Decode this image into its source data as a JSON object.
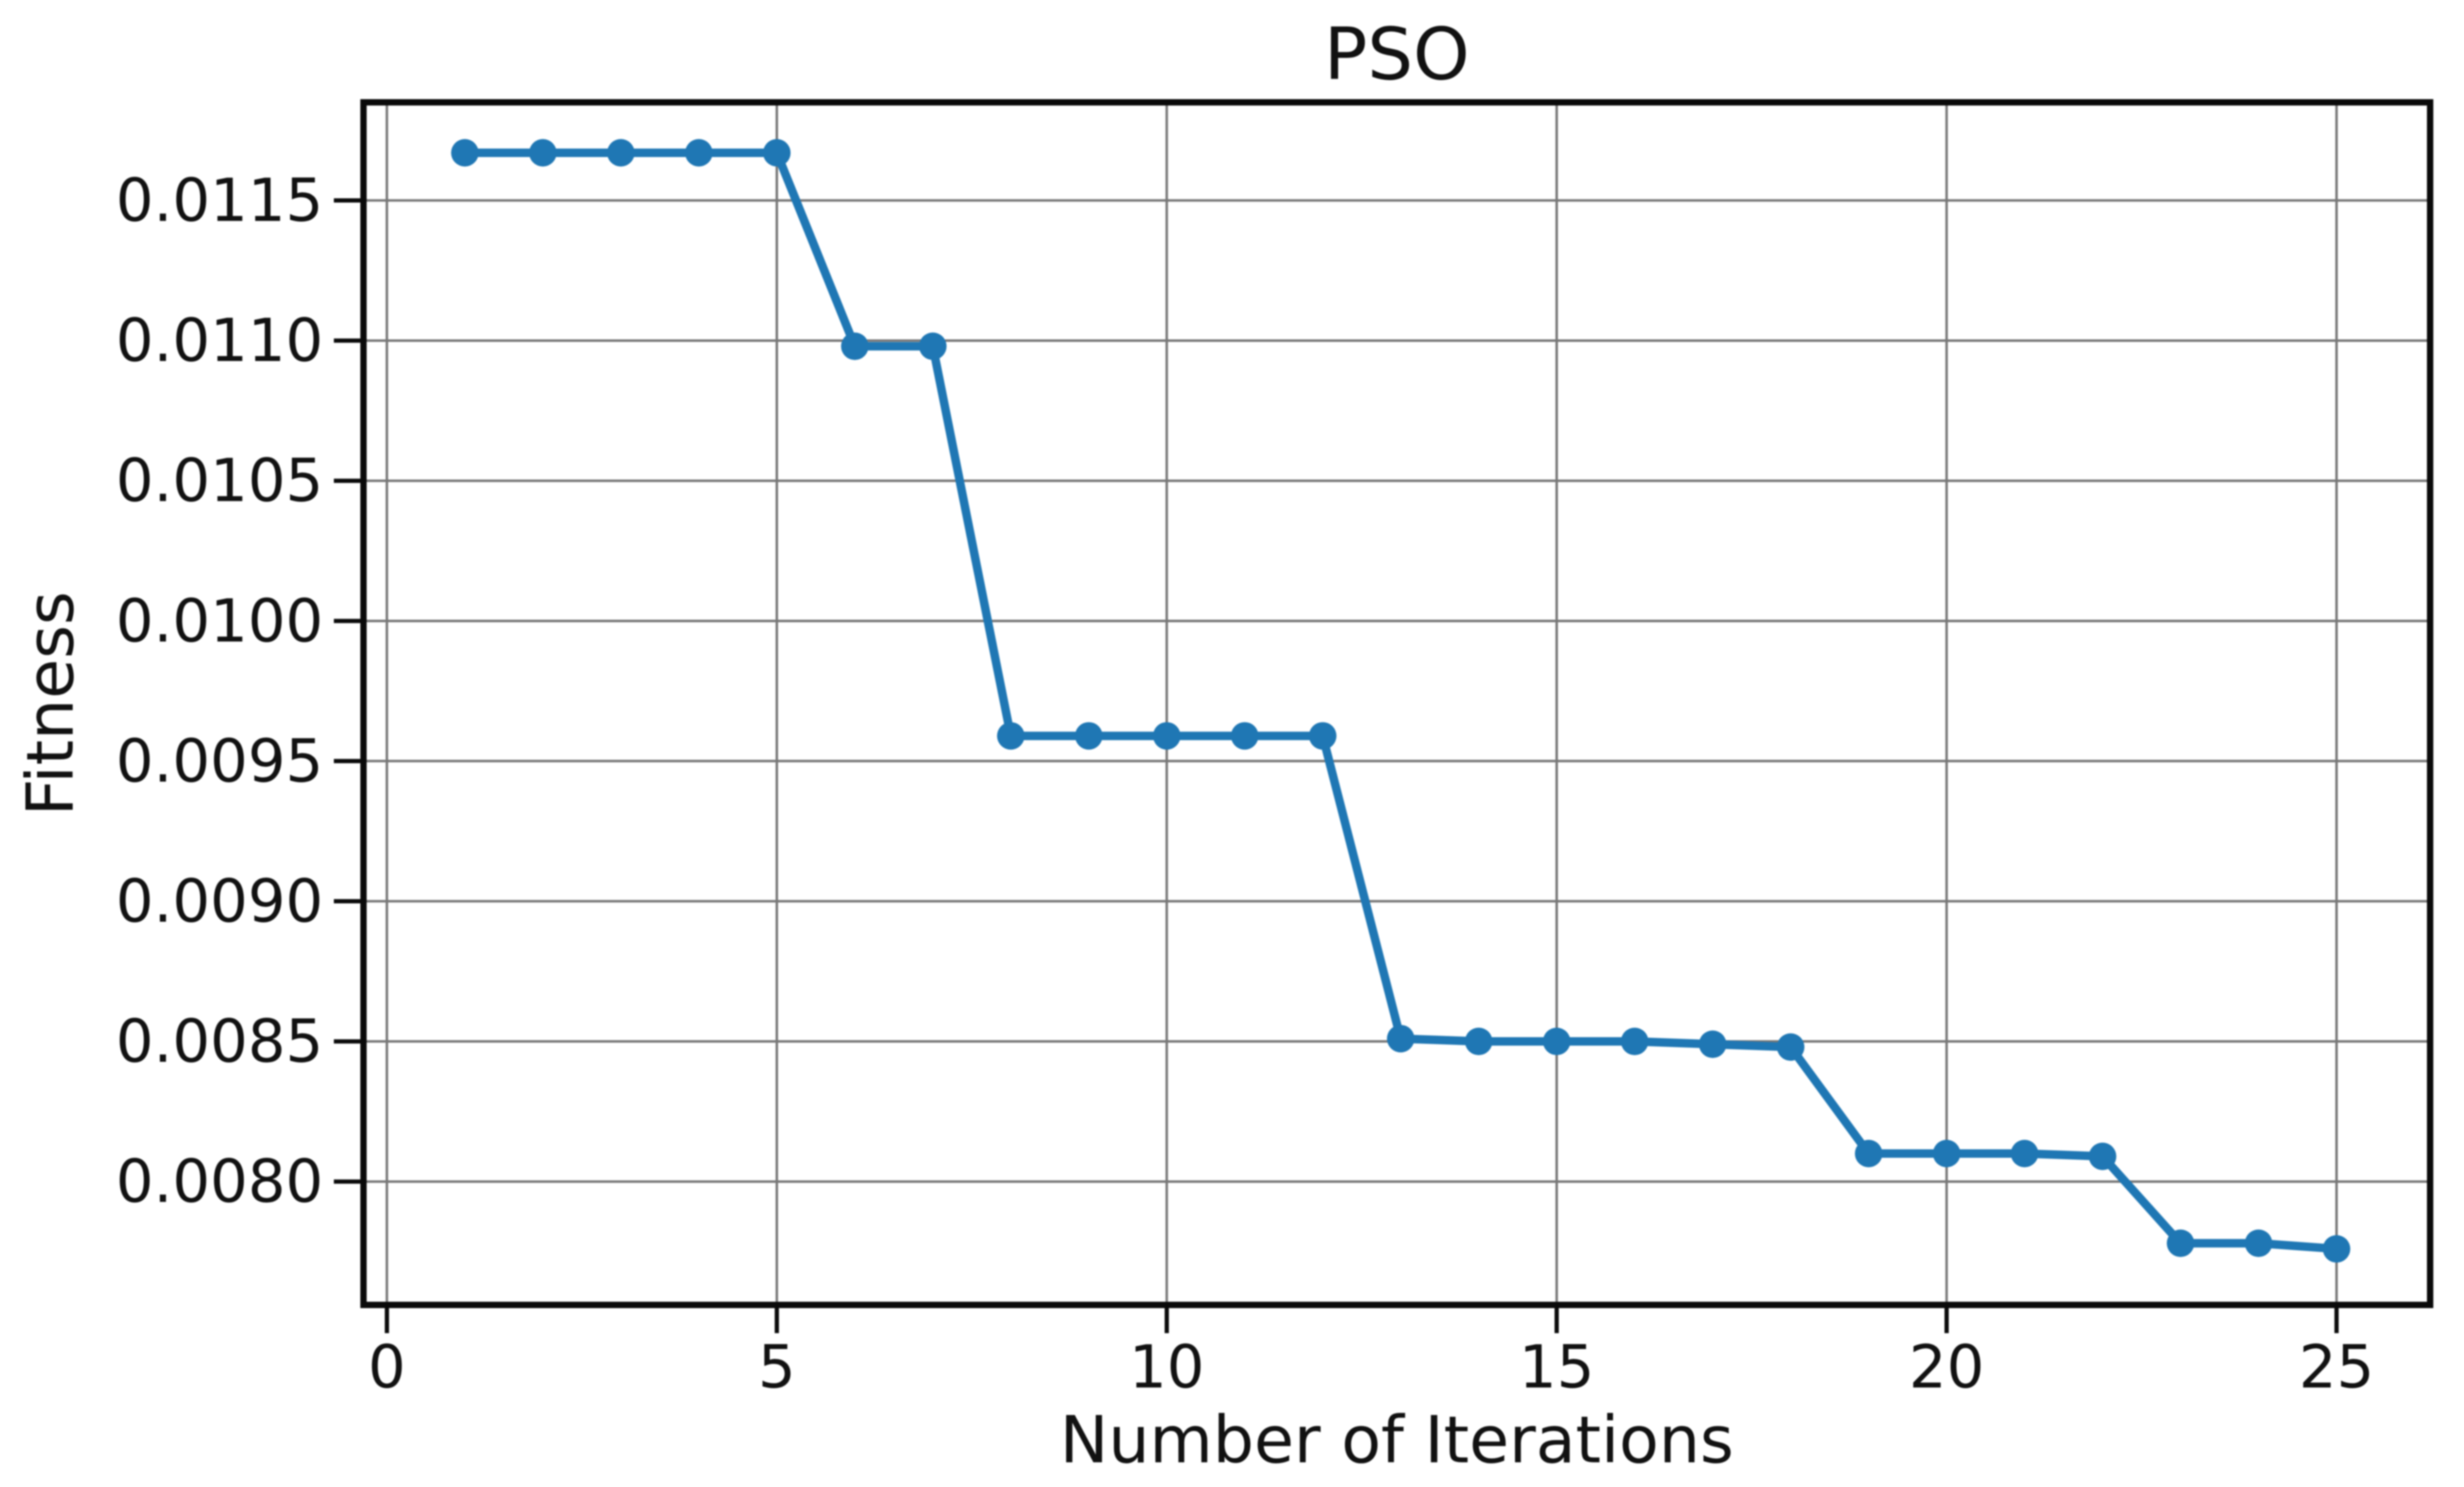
{
  "figure": {
    "background": "#ffffff"
  },
  "chart_data": {
    "type": "line",
    "title": "PSO",
    "xlabel": "Number of Iterations",
    "ylabel": "Fitness",
    "x": [
      1,
      2,
      3,
      4,
      5,
      6,
      7,
      8,
      9,
      10,
      11,
      12,
      13,
      14,
      15,
      16,
      17,
      18,
      19,
      20,
      21,
      22,
      23,
      24,
      25
    ],
    "y": [
      0.01167,
      0.01167,
      0.01167,
      0.01167,
      0.01167,
      0.01098,
      0.01098,
      0.00959,
      0.00959,
      0.00959,
      0.00959,
      0.00959,
      0.00851,
      0.0085,
      0.0085,
      0.0085,
      0.00849,
      0.00848,
      0.0081,
      0.0081,
      0.0081,
      0.00809,
      0.00778,
      0.00778,
      0.00776
    ],
    "x_ticks": {
      "values": [
        0,
        5,
        10,
        15,
        20,
        25
      ],
      "labels": [
        "0",
        "5",
        "10",
        "15",
        "20",
        "25"
      ]
    },
    "y_ticks": {
      "values": [
        0.008,
        0.0085,
        0.009,
        0.0095,
        0.01,
        0.0105,
        0.011,
        0.0115
      ],
      "labels": [
        "0.0080",
        "0.0085",
        "0.0090",
        "0.0095",
        "0.0100",
        "0.0105",
        "0.0110",
        "0.0115"
      ]
    },
    "x_range": [
      -0.3,
      26.2
    ],
    "y_range": [
      0.00756,
      0.01185
    ],
    "grid": true,
    "legend_position": "none",
    "line_color": "#1f77b4",
    "marker": "circle",
    "marker_color": "#1f77b4",
    "grid_color": "#777777",
    "spine_color": "#0a0a0a",
    "text_color": "#111111"
  }
}
